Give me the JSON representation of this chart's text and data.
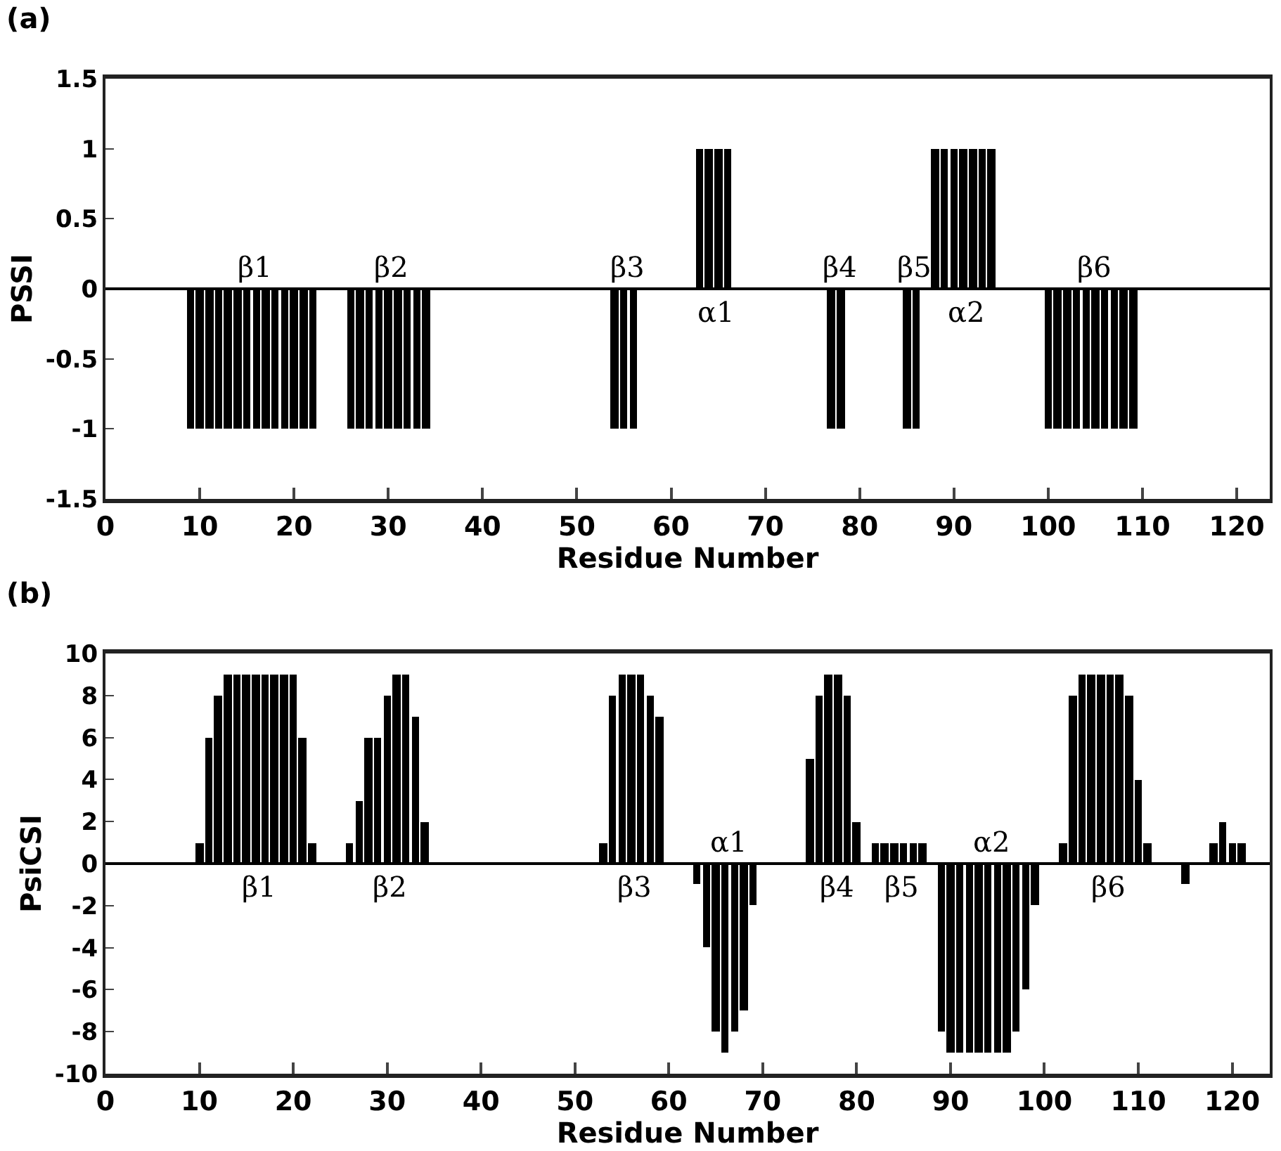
{
  "chart_data": [
    {
      "type": "bar",
      "title": "(a)",
      "xlabel": "Residue Number",
      "ylabel": "PSSI",
      "x": [
        9,
        10,
        11,
        12,
        13,
        14,
        15,
        16,
        17,
        18,
        19,
        20,
        21,
        22,
        26,
        27,
        28,
        29,
        30,
        31,
        32,
        33,
        34,
        54,
        55,
        56,
        63,
        64,
        65,
        66,
        77,
        78,
        85,
        86,
        88,
        89,
        90,
        91,
        92,
        93,
        94,
        100,
        101,
        102,
        103,
        104,
        105,
        106,
        107,
        108,
        109
      ],
      "values": [
        -1,
        -1,
        -1,
        -1,
        -1,
        -1,
        -1,
        -1,
        -1,
        -1,
        -1,
        -1,
        -1,
        -1,
        -1,
        -1,
        -1,
        -1,
        -1,
        -1,
        -1,
        -1,
        -1,
        -1,
        -1,
        -1,
        1,
        1,
        1,
        1,
        -1,
        -1,
        -1,
        -1,
        1,
        1,
        1,
        1,
        1,
        1,
        1,
        -1,
        -1,
        -1,
        -1,
        -1,
        -1,
        -1,
        -1,
        -1,
        -1
      ],
      "color": "#000000",
      "xlim": [
        0,
        123.5
      ],
      "xticks": [
        0,
        10,
        20,
        30,
        40,
        50,
        60,
        70,
        80,
        90,
        100,
        110,
        120
      ],
      "ylim": [
        -1.5,
        1.5
      ],
      "yticks": [
        -1.5,
        -1,
        -0.5,
        0,
        0.5,
        1,
        1.5
      ],
      "annotations": [
        "β1",
        "β2",
        "β3",
        "α1",
        "β4",
        "β5",
        "α2",
        "β6"
      ],
      "ref_lines": [
        {
          "axis": "y",
          "value": 0,
          "color": "#000000"
        }
      ],
      "grid": false
    },
    {
      "type": "bar",
      "title": "(b)",
      "xlabel": "Residue Number",
      "ylabel": "PsiCSI",
      "x": [
        10,
        11,
        12,
        13,
        14,
        15,
        16,
        17,
        18,
        19,
        20,
        21,
        22,
        26,
        27,
        28,
        29,
        30,
        31,
        32,
        33,
        34,
        53,
        54,
        55,
        56,
        57,
        58,
        59,
        63,
        64,
        65,
        66,
        67,
        68,
        69,
        75,
        76,
        77,
        78,
        79,
        80,
        82,
        83,
        84,
        85,
        86,
        87,
        89,
        90,
        91,
        92,
        93,
        94,
        95,
        96,
        97,
        98,
        99,
        102,
        103,
        104,
        105,
        106,
        107,
        108,
        109,
        110,
        111,
        115,
        118,
        119,
        120,
        121
      ],
      "values": [
        1,
        6,
        8,
        9,
        9,
        9,
        9,
        9,
        9,
        9,
        9,
        6,
        1,
        1,
        3,
        6,
        6,
        8,
        9,
        9,
        7,
        2,
        1,
        8,
        9,
        9,
        9,
        8,
        7,
        -1,
        -4,
        -8,
        -9,
        -8,
        -7,
        -2,
        5,
        8,
        9,
        9,
        8,
        2,
        1,
        1,
        1,
        1,
        1,
        1,
        -8,
        -9,
        -9,
        -9,
        -9,
        -9,
        -9,
        -9,
        -8,
        -6,
        -2,
        1,
        8,
        9,
        9,
        9,
        9,
        9,
        8,
        4,
        1,
        -1,
        1,
        2,
        1,
        1
      ],
      "color": "#000000",
      "xlim": [
        0,
        124
      ],
      "xticks": [
        0,
        10,
        20,
        30,
        40,
        50,
        60,
        70,
        80,
        90,
        100,
        110,
        120
      ],
      "ylim": [
        -10,
        10
      ],
      "yticks": [
        -10,
        -8,
        -6,
        -4,
        -2,
        0,
        2,
        4,
        6,
        8,
        10
      ],
      "annotations": [
        "β1",
        "β2",
        "β3",
        "α1",
        "β4",
        "β5",
        "α2",
        "β6"
      ],
      "ref_lines": [
        {
          "axis": "y",
          "value": 0,
          "color": "#000000"
        }
      ],
      "grid": false
    }
  ]
}
